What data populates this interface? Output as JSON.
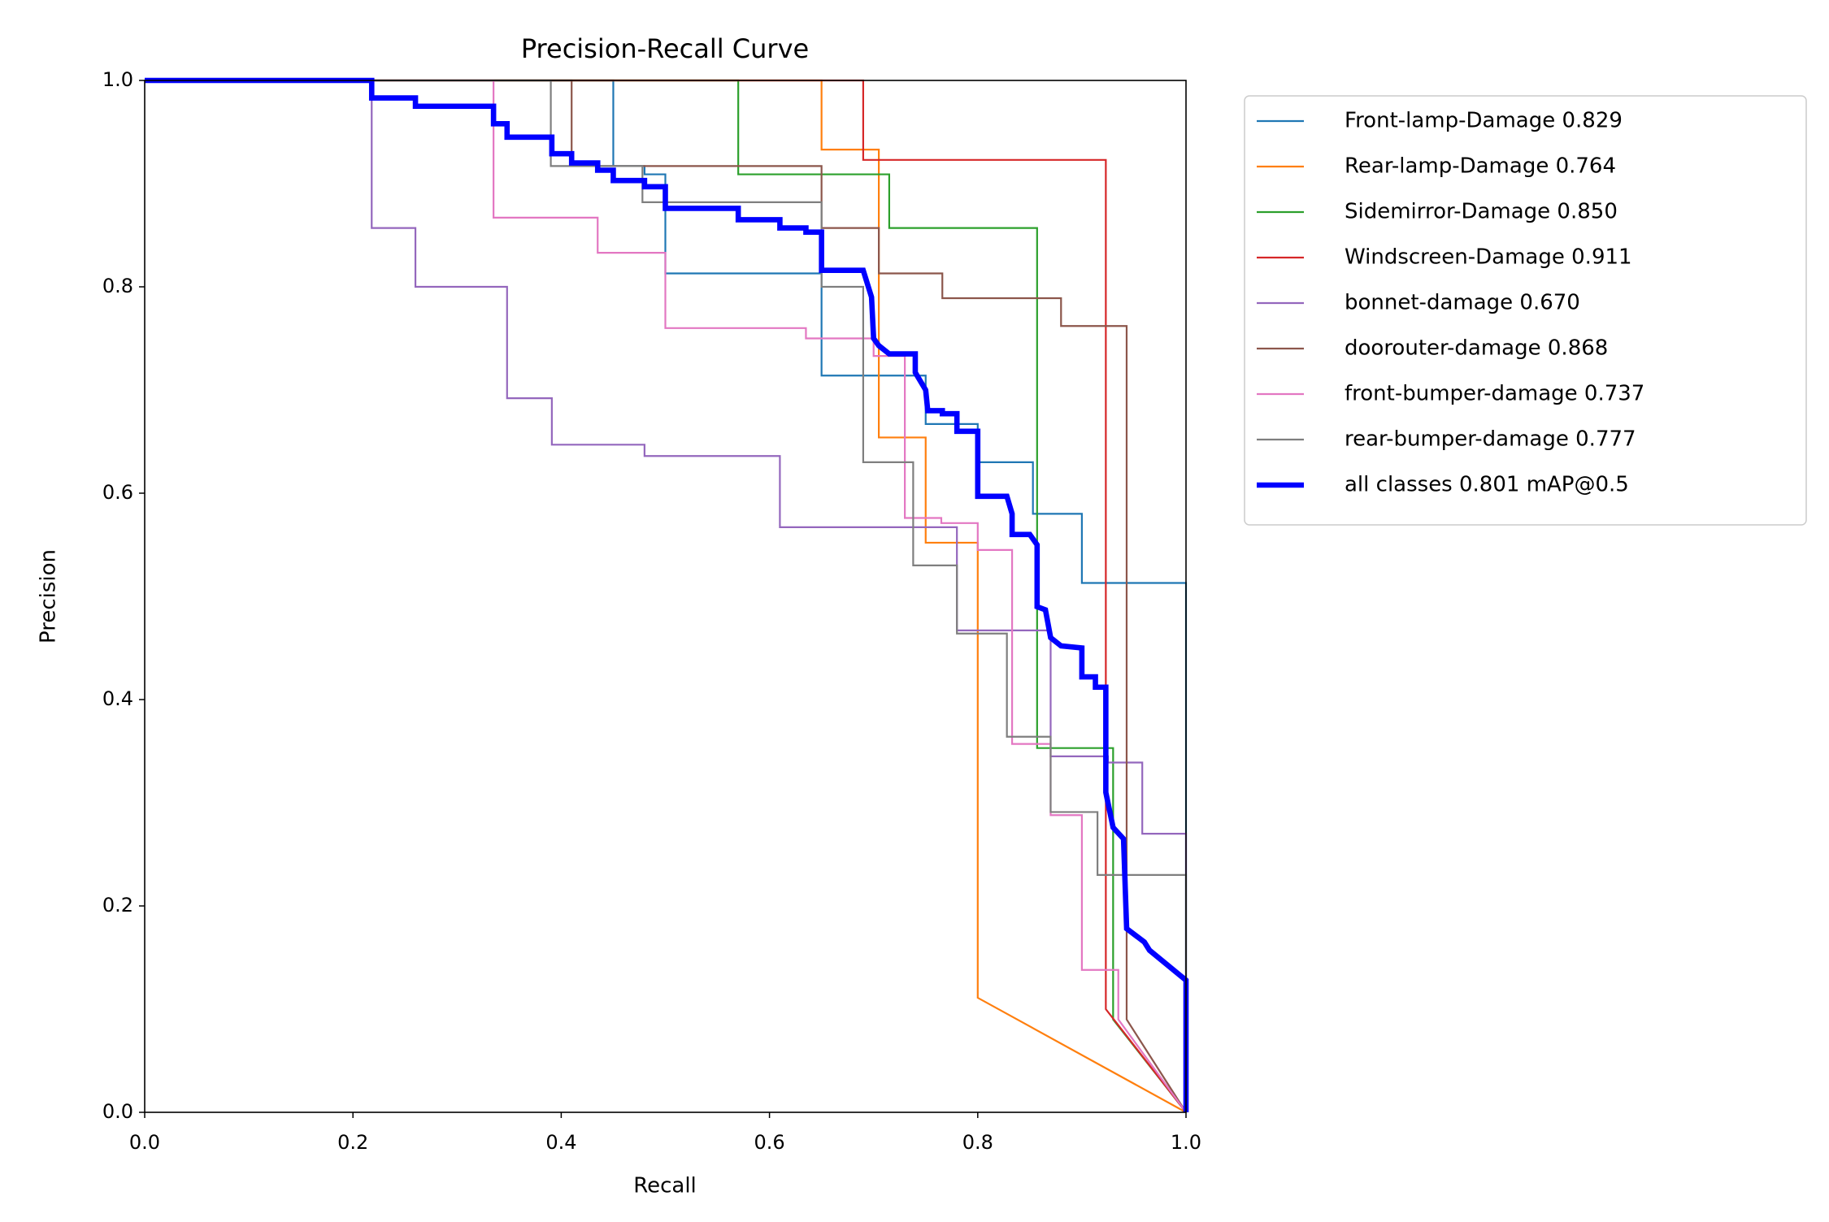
{
  "chart_data": {
    "type": "line",
    "title": "Precision-Recall Curve",
    "x_label": "Recall",
    "y_label": "Precision",
    "xlim": [
      0,
      1
    ],
    "ylim": [
      0,
      1
    ],
    "xticks": [
      {
        "value": 0,
        "label": "0.0"
      },
      0.2,
      0.4,
      0.6,
      0.8,
      {
        "value": 1,
        "label": "1.0"
      }
    ],
    "yticks": [
      {
        "value": 0,
        "label": "0.0"
      },
      0.2,
      0.4,
      0.6,
      0.8,
      {
        "value": 1,
        "label": "1.0"
      }
    ],
    "grid": false,
    "series": [
      {
        "name": "Front-lamp-Damage 0.829",
        "color": "#1f77b4",
        "linewidth": 1,
        "x": [
          0,
          0.45,
          0.45,
          0.48,
          0.48,
          0.5,
          0.5,
          0.65,
          0.65,
          0.75,
          0.75,
          0.8,
          0.8,
          0.853,
          0.853,
          0.9,
          0.9,
          1,
          1
        ],
        "values": [
          1,
          1,
          0.917,
          0.917,
          0.909,
          0.909,
          0.813,
          0.813,
          0.714,
          0.714,
          0.667,
          0.667,
          0.63,
          0.63,
          0.58,
          0.58,
          0.513,
          0.513,
          0
        ]
      },
      {
        "name": "Rear-lamp-Damage 0.764",
        "color": "#ff7f0e",
        "linewidth": 1,
        "x": [
          0,
          0.65,
          0.65,
          0.705,
          0.705,
          0.75,
          0.75,
          0.8,
          0.8,
          1
        ],
        "values": [
          1,
          1,
          0.933,
          0.933,
          0.654,
          0.654,
          0.552,
          0.552,
          0.111,
          0
        ]
      },
      {
        "name": "Sidemirror-Damage 0.850",
        "color": "#2ca02c",
        "linewidth": 1,
        "x": [
          0,
          0.57,
          0.57,
          0.715,
          0.715,
          0.857,
          0.857,
          0.93,
          0.93,
          1
        ],
        "values": [
          1,
          1,
          0.909,
          0.909,
          0.857,
          0.857,
          0.353,
          0.353,
          0.09,
          0
        ]
      },
      {
        "name": "Windscreen-Damage 0.911",
        "color": "#d62728",
        "linewidth": 1,
        "x": [
          0,
          0.69,
          0.69,
          0.923,
          0.923,
          1
        ],
        "values": [
          1,
          1,
          0.923,
          0.923,
          0.1,
          0
        ]
      },
      {
        "name": "bonnet-damage 0.670",
        "color": "#9467bd",
        "linewidth": 1,
        "x": [
          0,
          0.218,
          0.218,
          0.26,
          0.26,
          0.348,
          0.348,
          0.391,
          0.391,
          0.48,
          0.48,
          0.61,
          0.61,
          0.78,
          0.78,
          0.87,
          0.87,
          0.925,
          0.925,
          0.958,
          0.958,
          1,
          1
        ],
        "values": [
          1,
          1,
          0.857,
          0.857,
          0.8,
          0.8,
          0.692,
          0.692,
          0.647,
          0.647,
          0.636,
          0.636,
          0.567,
          0.567,
          0.467,
          0.467,
          0.345,
          0.345,
          0.339,
          0.339,
          0.27,
          0.27,
          0
        ]
      },
      {
        "name": "doorouter-damage 0.868",
        "color": "#8c564b",
        "linewidth": 1,
        "x": [
          0,
          0.41,
          0.41,
          0.65,
          0.65,
          0.705,
          0.705,
          0.766,
          0.766,
          0.88,
          0.88,
          0.943,
          0.943,
          1
        ],
        "values": [
          1,
          1,
          0.917,
          0.917,
          0.857,
          0.857,
          0.813,
          0.813,
          0.789,
          0.789,
          0.762,
          0.762,
          0.09,
          0
        ]
      },
      {
        "name": "front-bumper-damage 0.737",
        "color": "#e377c2",
        "linewidth": 1,
        "x": [
          0,
          0.335,
          0.335,
          0.435,
          0.435,
          0.5,
          0.5,
          0.635,
          0.635,
          0.7,
          0.7,
          0.73,
          0.73,
          0.765,
          0.765,
          0.8,
          0.8,
          0.833,
          0.833,
          0.87,
          0.87,
          0.9,
          0.9,
          0.935,
          0.935,
          1
        ],
        "values": [
          1,
          1,
          0.867,
          0.867,
          0.833,
          0.833,
          0.76,
          0.76,
          0.75,
          0.75,
          0.733,
          0.733,
          0.576,
          0.576,
          0.571,
          0.571,
          0.545,
          0.545,
          0.357,
          0.357,
          0.288,
          0.288,
          0.138,
          0.138,
          0.09,
          0
        ]
      },
      {
        "name": "rear-bumper-damage 0.777",
        "color": "#7f7f7f",
        "linewidth": 1,
        "x": [
          0,
          0.39,
          0.39,
          0.478,
          0.478,
          0.65,
          0.65,
          0.69,
          0.69,
          0.738,
          0.738,
          0.78,
          0.78,
          0.828,
          0.828,
          0.87,
          0.87,
          0.915,
          0.915,
          1,
          1
        ],
        "values": [
          1,
          1,
          0.917,
          0.917,
          0.882,
          0.882,
          0.8,
          0.8,
          0.63,
          0.63,
          0.53,
          0.53,
          0.464,
          0.464,
          0.364,
          0.364,
          0.291,
          0.291,
          0.23,
          0.23,
          0
        ]
      },
      {
        "name": "all classes 0.801 mAP@0.5",
        "color": "#0000ff",
        "linewidth": 3,
        "x": [
          0,
          0.218,
          0.218,
          0.26,
          0.26,
          0.335,
          0.335,
          0.348,
          0.348,
          0.391,
          0.391,
          0.41,
          0.41,
          0.435,
          0.435,
          0.45,
          0.45,
          0.48,
          0.48,
          0.5,
          0.5,
          0.57,
          0.57,
          0.61,
          0.61,
          0.635,
          0.635,
          0.65,
          0.65,
          0.69,
          0.698,
          0.7,
          0.705,
          0.715,
          0.74,
          0.74,
          0.75,
          0.752,
          0.766,
          0.766,
          0.78,
          0.78,
          0.8,
          0.8,
          0.828,
          0.833,
          0.833,
          0.85,
          0.857,
          0.857,
          0.865,
          0.87,
          0.88,
          0.9,
          0.9,
          0.913,
          0.913,
          0.923,
          0.923,
          0.93,
          0.94,
          0.943,
          0.96,
          0.965,
          1,
          1
        ],
        "values": [
          1,
          1,
          0.983,
          0.983,
          0.975,
          0.975,
          0.958,
          0.958,
          0.945,
          0.945,
          0.929,
          0.929,
          0.92,
          0.92,
          0.913,
          0.913,
          0.903,
          0.903,
          0.897,
          0.897,
          0.876,
          0.876,
          0.865,
          0.865,
          0.857,
          0.857,
          0.853,
          0.853,
          0.816,
          0.816,
          0.79,
          0.75,
          0.743,
          0.735,
          0.735,
          0.717,
          0.7,
          0.68,
          0.68,
          0.677,
          0.677,
          0.66,
          0.66,
          0.597,
          0.597,
          0.58,
          0.56,
          0.56,
          0.55,
          0.49,
          0.487,
          0.46,
          0.452,
          0.45,
          0.422,
          0.422,
          0.412,
          0.412,
          0.31,
          0.276,
          0.265,
          0.178,
          0.165,
          0.157,
          0.128,
          0
        ]
      }
    ]
  }
}
